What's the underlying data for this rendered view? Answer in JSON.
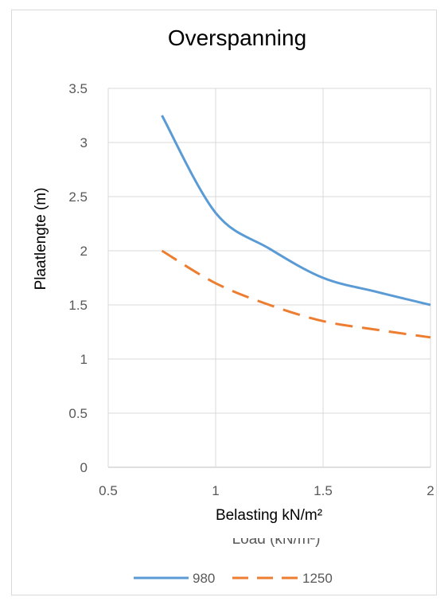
{
  "chart_data": {
    "type": "line",
    "title": "Overspanning",
    "xlabel": "Belasting kN/m²",
    "ylabel": "Plaatlengte (m)",
    "ghost_xlabel": "Load (kN/m²)",
    "xlim": [
      0.5,
      2
    ],
    "ylim": [
      0,
      3.5
    ],
    "x_ticks": [
      0.5,
      1,
      1.5,
      2
    ],
    "y_ticks": [
      0,
      0.5,
      1,
      1.5,
      2,
      2.5,
      3,
      3.5
    ],
    "x_tick_labels": [
      "0.5",
      "1",
      "1.5",
      "2"
    ],
    "y_tick_labels": [
      "0",
      "0.5",
      "1",
      "1.5",
      "2",
      "2.5",
      "3",
      "3.5"
    ],
    "grid": true,
    "legend_position": "bottom",
    "series": [
      {
        "name": "980",
        "color": "#5b9bd5",
        "style": "solid",
        "x": [
          0.75,
          1.0,
          1.25,
          1.5,
          1.75,
          2.0
        ],
        "y": [
          3.25,
          2.35,
          2.02,
          1.75,
          1.62,
          1.5
        ]
      },
      {
        "name": "1250",
        "color": "#ed7d31",
        "style": "dashed",
        "x": [
          0.75,
          1.0,
          1.25,
          1.5,
          1.75,
          2.0
        ],
        "y": [
          2.0,
          1.7,
          1.5,
          1.35,
          1.27,
          1.2
        ]
      }
    ]
  }
}
